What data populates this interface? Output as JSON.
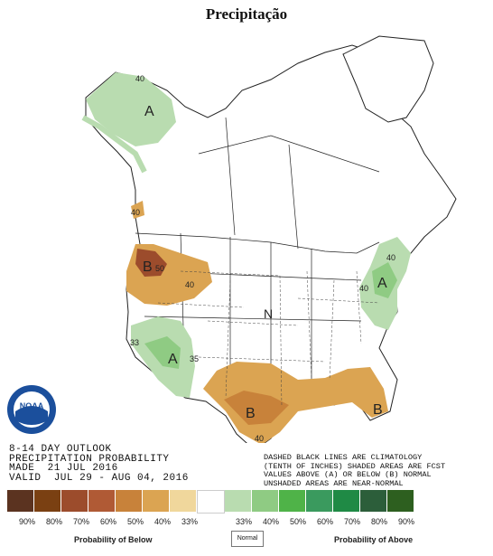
{
  "title": "Precipitação",
  "outlook": {
    "line1": "8-14 DAY OUTLOOK",
    "line2": "PRECIPITATION PROBABILITY",
    "line3": "MADE  21 JUL 2016",
    "line4": "VALID  JUL 29 - AUG 04, 2016"
  },
  "note": {
    "line1": "DASHED BLACK LINES ARE CLIMATOLOGY",
    "line2": "(TENTH OF INCHES) SHADED AREAS ARE FCST",
    "line3": "VALUES ABOVE (A) OR BELOW (B) NORMAL",
    "line4": "UNSHADED AREAS ARE NEAR-NORMAL"
  },
  "legend": {
    "below_label": "Probability of Below",
    "normal_label": "Normal",
    "above_label": "Probability of Above",
    "ticks": [
      "90%",
      "80%",
      "70%",
      "60%",
      "50%",
      "40%",
      "33%",
      "33%",
      "40%",
      "50%",
      "60%",
      "70%",
      "80%",
      "90%"
    ],
    "colors": [
      "#5b3320",
      "#7a4012",
      "#9c4c2c",
      "#b05a35",
      "#c8823a",
      "#dba452",
      "#f0d79c",
      "#ffffff",
      "#b9dcb0",
      "#8fcb83",
      "#4fb348",
      "#3a9a5e",
      "#1f8a45",
      "#2c5e3a",
      "#2d5f1f"
    ]
  },
  "map_labels": {
    "alaska": "A",
    "alaska_40": "40",
    "pnw": "B",
    "pnw_40": "40",
    "pnw_50": "50",
    "pnw_40b": "40",
    "southwest": "A",
    "southwest_33": "33",
    "southwest_35": "35",
    "northeast": "A",
    "northeast_40": "40",
    "northeast_40b": "40",
    "central": "N",
    "texas": "B",
    "texas_40": "40",
    "southeast": "B"
  },
  "logo_text": "NOAA"
}
